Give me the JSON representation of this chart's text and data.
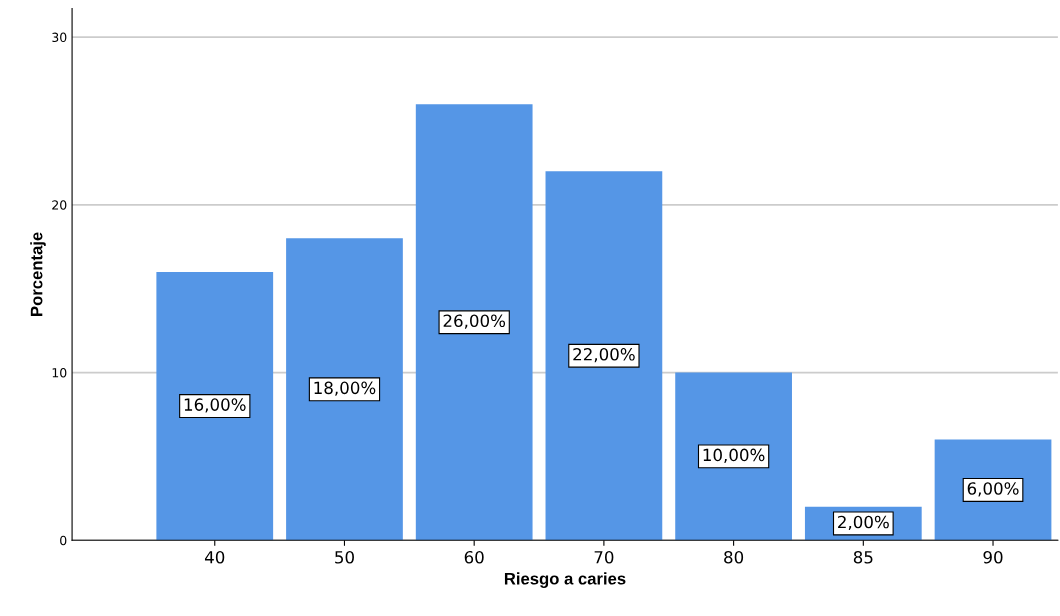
{
  "chart_data": {
    "type": "bar",
    "xlabel": "Riesgo a caries",
    "ylabel": "Porcentaje",
    "categories": [
      "40",
      "50",
      "60",
      "70",
      "80",
      "85",
      "90"
    ],
    "values": [
      16,
      18,
      26,
      22,
      10,
      2,
      6
    ],
    "value_labels": [
      "16,00%",
      "18,00%",
      "26,00%",
      "22,00%",
      "10,00%",
      "2,00%",
      "6,00%"
    ],
    "color": "#5596e6",
    "ylim": [
      0,
      31.7
    ],
    "yticks": [
      0,
      10,
      20,
      30
    ],
    "grid": "y"
  }
}
